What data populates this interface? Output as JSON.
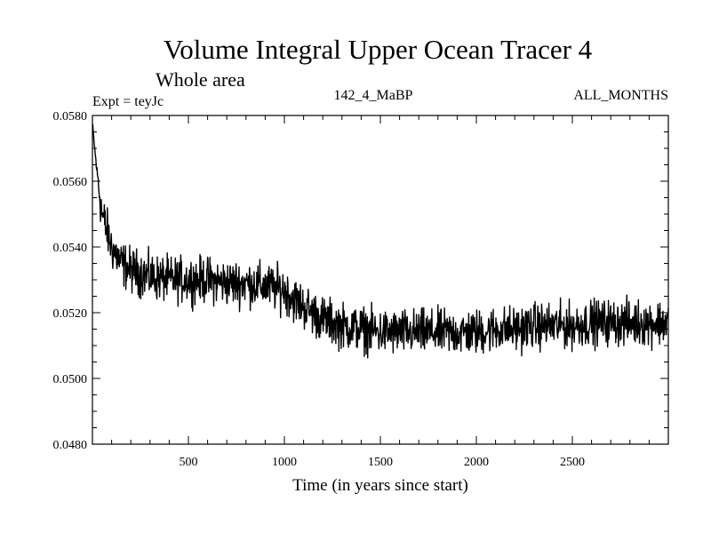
{
  "chart_data": {
    "type": "line",
    "title": "Volume Integral Upper Ocean Tracer 4",
    "subtitle": "Whole area",
    "expt_label": "Expt = teyJc",
    "run_label": "142_4_MaBP",
    "season_label": "ALL_MONTHS",
    "xlabel": "Time (in years since start)",
    "ylabel": "",
    "xlim": [
      0,
      3000
    ],
    "ylim": [
      0.048,
      0.058
    ],
    "xticks": [
      500,
      1000,
      1500,
      2000,
      2500
    ],
    "xtick_labels": [
      "500",
      "1000",
      "1500",
      "2000",
      "2500"
    ],
    "yticks": [
      0.048,
      0.05,
      0.052,
      0.054,
      0.056,
      0.058
    ],
    "ytick_labels": [
      "0.0480",
      "0.0500",
      "0.0520",
      "0.0540",
      "0.0560",
      "0.0580"
    ],
    "series": [
      {
        "name": "Tracer 4 volume integral",
        "color": "#000000",
        "trend_points": [
          [
            0,
            0.0577
          ],
          [
            20,
            0.0565
          ],
          [
            50,
            0.055
          ],
          [
            100,
            0.054
          ],
          [
            150,
            0.0535
          ],
          [
            200,
            0.0533
          ],
          [
            300,
            0.0531
          ],
          [
            400,
            0.053
          ],
          [
            500,
            0.053
          ],
          [
            600,
            0.053
          ],
          [
            700,
            0.0529
          ],
          [
            800,
            0.0529
          ],
          [
            900,
            0.0528
          ],
          [
            1000,
            0.0527
          ],
          [
            1050,
            0.0524
          ],
          [
            1100,
            0.0522
          ],
          [
            1150,
            0.052
          ],
          [
            1200,
            0.0518
          ],
          [
            1300,
            0.0516
          ],
          [
            1400,
            0.0515
          ],
          [
            1500,
            0.0514
          ],
          [
            1600,
            0.0514
          ],
          [
            1700,
            0.0514
          ],
          [
            1800,
            0.0514
          ],
          [
            1900,
            0.0514
          ],
          [
            2000,
            0.0514
          ],
          [
            2100,
            0.0515
          ],
          [
            2200,
            0.0515
          ],
          [
            2300,
            0.0516
          ],
          [
            2400,
            0.0516
          ],
          [
            2500,
            0.0516
          ],
          [
            2600,
            0.0517
          ],
          [
            2700,
            0.0517
          ],
          [
            2800,
            0.0517
          ],
          [
            2900,
            0.0517
          ],
          [
            3000,
            0.0517
          ]
        ],
        "noise_amplitude": 0.00042,
        "sample_step_years": 2
      }
    ]
  }
}
